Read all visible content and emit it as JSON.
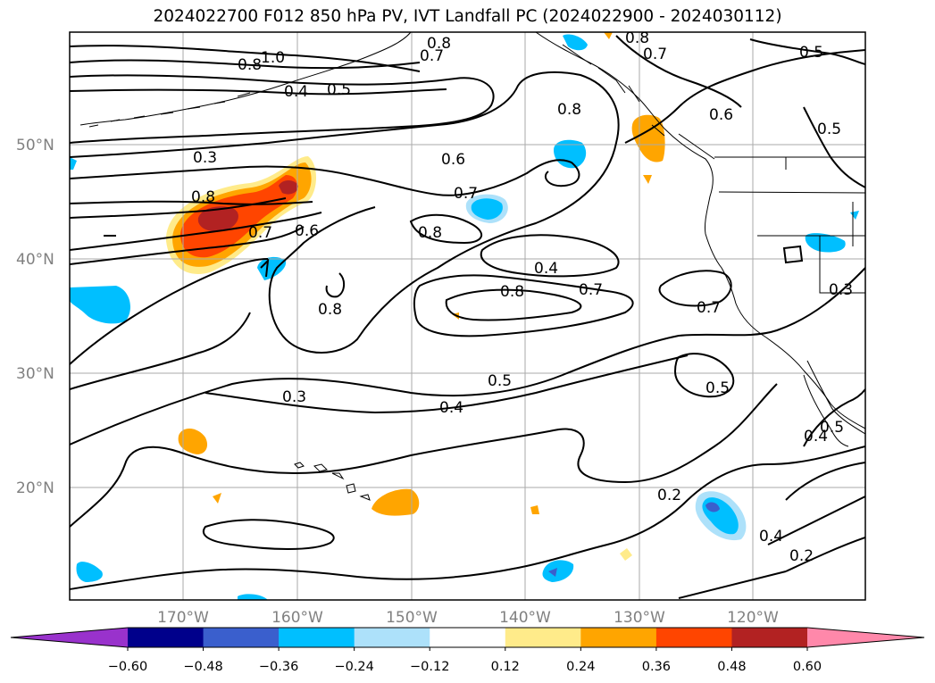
{
  "title": "2024022700 F012 850 hPa PV, IVT Landfall PC (2024022900 - 2024030112)",
  "axes": {
    "lat_ticks": [
      "50°N",
      "40°N",
      "30°N",
      "20°N"
    ],
    "lon_ticks": [
      "170°W",
      "160°W",
      "150°W",
      "140°W",
      "130°W",
      "120°W"
    ]
  },
  "contour_labels": [
    "1.0",
    "0.8",
    "0.8",
    "0.7",
    "0.8",
    "0.7",
    "0.5",
    "0.5",
    "0.4",
    "0.5",
    "0.8",
    "0.6",
    "0.3",
    "0.6",
    "0.7",
    "0.8",
    "0.8",
    "0.7",
    "0.6",
    "0.4",
    "0.8",
    "0.7",
    "0.7",
    "0.8",
    "0.3",
    "0.5",
    "0.5",
    "0.4",
    "0.3",
    "0.4",
    "0.5",
    "0.2",
    "0.4",
    "0.2"
  ],
  "colorbar": {
    "colors": [
      "#9932CC",
      "#00008B",
      "#3A5FCD",
      "#00BFFF",
      "#ADE1FA",
      "#FFFFFF",
      "#FFEB8A",
      "#FFA500",
      "#FF4500",
      "#B22222",
      "#FF88AA"
    ],
    "tick_labels": [
      "−0.60",
      "−0.48",
      "−0.36",
      "−0.24",
      "−0.12",
      "0.12",
      "0.24",
      "0.36",
      "0.48",
      "0.60"
    ]
  }
}
